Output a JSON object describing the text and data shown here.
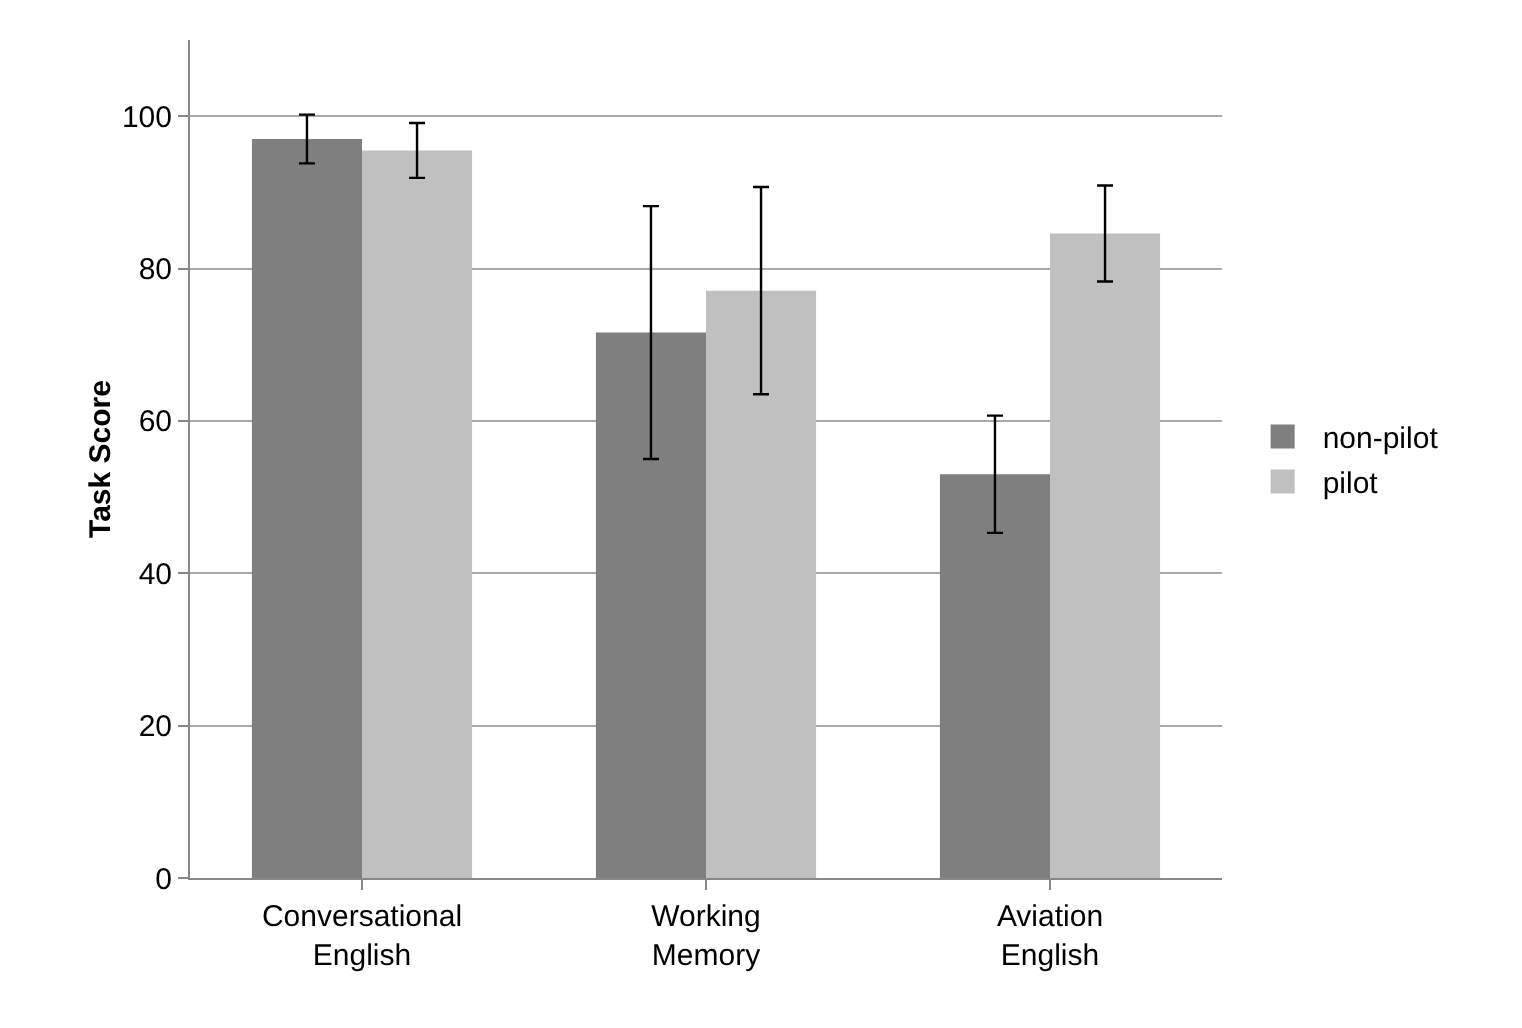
{
  "chart_data": {
    "type": "bar",
    "ylabel": "Task Score",
    "categories": [
      "Conversational English",
      "Working Memory",
      "Aviation English"
    ],
    "series": [
      {
        "name": "non-pilot",
        "color": "#7f7f7f",
        "values": [
          97.0,
          71.6,
          53.0
        ],
        "errors": [
          3.2,
          16.6,
          7.7
        ]
      },
      {
        "name": "pilot",
        "color": "#c0c0c0",
        "values": [
          95.5,
          77.1,
          84.6
        ],
        "errors": [
          3.6,
          13.6,
          6.3
        ]
      }
    ],
    "ylim": [
      0,
      110
    ],
    "yticks": [
      0,
      20,
      40,
      60,
      80,
      100
    ],
    "grid": "y",
    "legend": "right"
  }
}
